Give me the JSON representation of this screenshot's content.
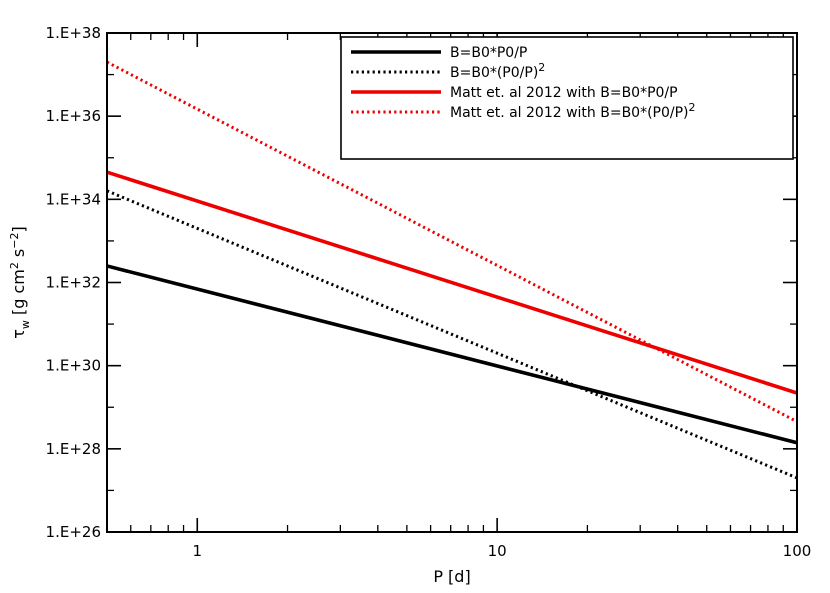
{
  "chart_data": {
    "type": "line",
    "xlabel": "P [d]",
    "ylabel": "τ_w [g cm^2 s^-2]",
    "x_scale": "log",
    "y_scale": "log",
    "xlim": [
      0.5,
      100
    ],
    "ylim": [
      1e+26,
      1e+38
    ],
    "x_ticks": [
      {
        "value": 1,
        "label": "1"
      },
      {
        "value": 10,
        "label": "10"
      },
      {
        "value": 100,
        "label": "100"
      }
    ],
    "y_ticks": [
      {
        "value": 1e+26,
        "label": "1.E+26"
      },
      {
        "value": 1e+28,
        "label": "1.E+28"
      },
      {
        "value": 1e+30,
        "label": "1.E+30"
      },
      {
        "value": 1e+32,
        "label": "1.E+32"
      },
      {
        "value": 1e+34,
        "label": "1.E+34"
      },
      {
        "value": 1e+36,
        "label": "1.E+36"
      },
      {
        "value": 1e+38,
        "label": "1.E+38"
      }
    ],
    "legend_position": "top-right",
    "series": [
      {
        "name": "B=B0*P0/P",
        "color": "#000000",
        "dash": "solid",
        "x": [
          0.5,
          100
        ],
        "y": [
          2.5e+32,
          1.4e+28
        ]
      },
      {
        "name": "B=B0*(P0/P)^2",
        "color": "#000000",
        "dash": "dotted",
        "x": [
          0.5,
          100
        ],
        "y": [
          1.6e+34,
          2e+27
        ]
      },
      {
        "name": "Matt et. al 2012 with B=B0*P0/P",
        "color": "#ee0000",
        "dash": "solid",
        "x": [
          0.5,
          100
        ],
        "y": [
          4.5e+34,
          2.2e+29
        ]
      },
      {
        "name": "Matt et. al 2012 with B=B0*(P0/P)^2",
        "color": "#ee0000",
        "dash": "dotted",
        "x": [
          0.5,
          100
        ],
        "y": [
          2e+37,
          4.5e+28
        ]
      }
    ]
  }
}
